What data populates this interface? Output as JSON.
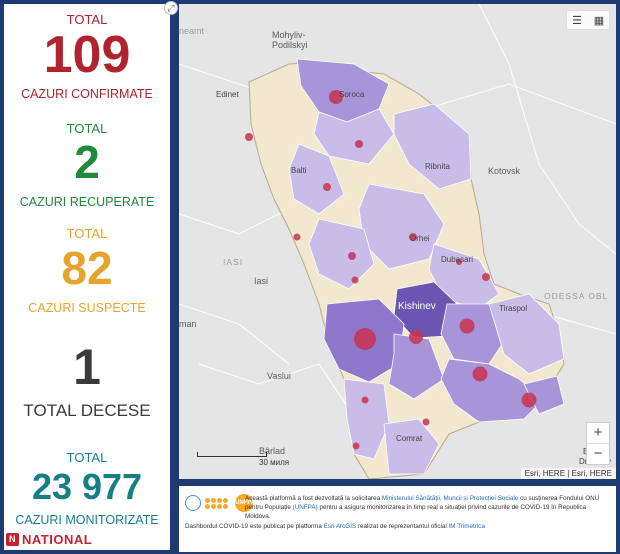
{
  "stats": {
    "confirmed": {
      "label": "TOTAL",
      "value": "109",
      "sub": "CAZURI CONFIRMATE"
    },
    "recovered": {
      "label": "TOTAL",
      "value": "2",
      "sub": "CAZURI RECUPERATE"
    },
    "suspected": {
      "label": "TOTAL",
      "value": "82",
      "sub": "CAZURI SUSPECTE"
    },
    "deaths": {
      "value": "1",
      "sub": "TOTAL DECESE"
    },
    "monitored": {
      "label": "TOTAL",
      "value": "23 977",
      "sub": "CAZURI MONITORIZATE"
    }
  },
  "logo": {
    "text": "NATIONAL",
    "mark": "N"
  },
  "map": {
    "places": {
      "mohyliv": "Mohyliv-\nPodilskyi",
      "edinet": "Edinet",
      "soroca": "Soroca",
      "balti": "Balti",
      "ribnita": "Ribnita",
      "kotovsk": "Kotovsk",
      "orhei": "Orhei",
      "dubasari": "Dubasari",
      "iasi_upper": "IASI",
      "iasi": "Iasi",
      "kishinev": "Kishinev",
      "tiraspol": "Tiraspol",
      "odessa": "ODESSA OBL",
      "vaslui": "Vaslui",
      "comrat": "Comrat",
      "barlad": "Bârlad",
      "neamt": "neamt",
      "man": "man",
      "dnestrov": "Dnestrov",
      "ba": "B..."
    },
    "scale_label": "30 миля",
    "attribution": "Esri, HERE | Esri, HERE",
    "zoom_in": "+",
    "zoom_out": "−",
    "legend_icon": "legend-list-icon",
    "basemap_icon": "basemap-gallery-icon"
  },
  "info": {
    "line1a": "Această platformă a fost dezvoltată la solicitarea ",
    "line1b": "Ministerului Sănătății, Muncii și Protecției Sociale",
    "line1c": " cu susținerea Fondului ONU pentru Populație ",
    "line1d": "(UNFPA)",
    "line1e": " pentru a asigura monitorizarea în timp real a situației privind cazurile de COVID-19 în Republica Moldova.",
    "line2a": "Dashbordul COVID-19 este publicat pe platforma ",
    "line2b": "Esri ArcGIS",
    "line2c": " realizat de reprezentantul oficial ",
    "line2d": "IM Trimetrica",
    "unfpa": "UNFPA"
  },
  "colors": {
    "confirmed": "#b0222c",
    "recovered": "#1f8a3c",
    "suspected": "#e6a42c",
    "deaths": "#3a3a3a",
    "monitored": "#167f86",
    "moldova_fill": "#f1e8cf",
    "district_light": "#c8bde8",
    "district_mid": "#a894d8",
    "district_dark": "#6a56b0",
    "case_dot": "#c8324f"
  }
}
